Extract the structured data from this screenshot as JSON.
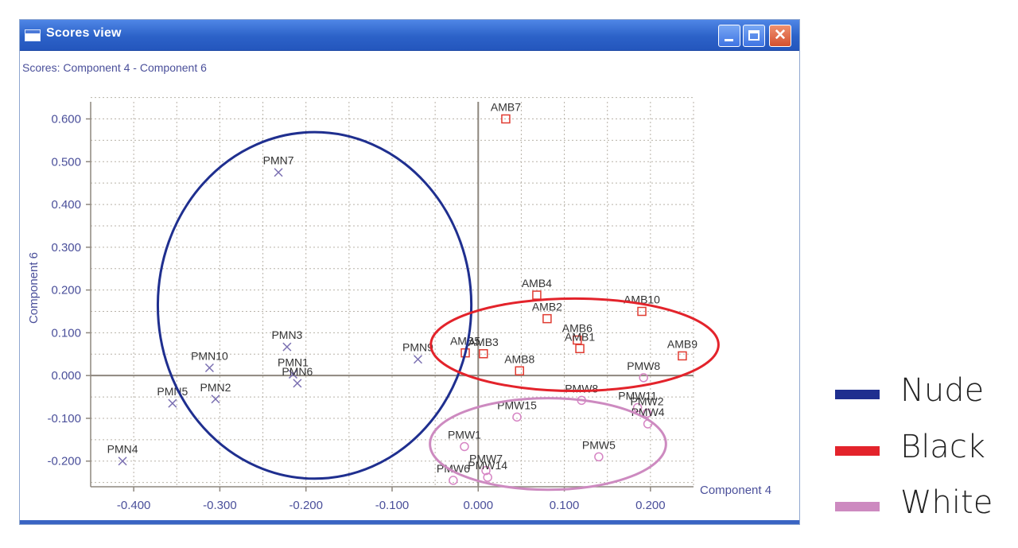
{
  "window": {
    "title": "Scores view",
    "subtitle": "Scores: Component 4 - Component 6",
    "controls": {
      "minimize": "minimize",
      "maximize": "maximize",
      "close": "close"
    }
  },
  "colors": {
    "nude": "#1f2f8f",
    "black": "#e3232b",
    "white": "#cd8ac0",
    "marker_pmn": "#7a6fb1",
    "marker_amb": "#e03b31",
    "marker_pmw": "#d685c4",
    "axis_text": "#4a4f9a",
    "grid": "#b8b2a8",
    "zero_axis": "#8e877e"
  },
  "legend": [
    {
      "label": "Nude",
      "color": "#1f2f8f"
    },
    {
      "label": "Black",
      "color": "#e3232b"
    },
    {
      "label": "White",
      "color": "#cd8ac0"
    }
  ],
  "chart_data": {
    "type": "scatter",
    "title": "Scores: Component 4 - Component 6",
    "xlabel": "Component 4",
    "ylabel": "Component 6",
    "xlim": [
      -0.45,
      0.25
    ],
    "ylim": [
      -0.26,
      0.64
    ],
    "xticks": [
      -0.4,
      -0.3,
      -0.2,
      -0.1,
      0.0,
      0.1,
      0.2
    ],
    "xtick_labels": [
      "-0.400",
      "-0.300",
      "-0.200",
      "-0.100",
      "0.000",
      "0.100",
      "0.200"
    ],
    "yticks": [
      0.6,
      0.5,
      0.4,
      0.3,
      0.2,
      0.1,
      0.0,
      -0.1,
      -0.2
    ],
    "ytick_labels": [
      "0.600",
      "0.500",
      "0.400",
      "0.300",
      "0.200",
      "0.100",
      "0.000",
      "-0.100",
      "-0.200"
    ],
    "grid": true,
    "series": [
      {
        "name": "Nude",
        "marker": "x",
        "points": [
          {
            "label": "PMN7",
            "x": -0.232,
            "y": 0.475
          },
          {
            "label": "PMN3",
            "x": -0.222,
            "y": 0.067
          },
          {
            "label": "PMN10",
            "x": -0.312,
            "y": 0.018
          },
          {
            "label": "PMN1",
            "x": -0.215,
            "y": 0.003
          },
          {
            "label": "PMN6",
            "x": -0.21,
            "y": -0.018
          },
          {
            "label": "PMN9",
            "x": -0.07,
            "y": 0.038
          },
          {
            "label": "PMN5",
            "x": -0.355,
            "y": -0.065
          },
          {
            "label": "PMN2",
            "x": -0.305,
            "y": -0.055
          },
          {
            "label": "PMN4",
            "x": -0.413,
            "y": -0.2
          }
        ]
      },
      {
        "name": "Black",
        "marker": "square",
        "points": [
          {
            "label": "AMB7",
            "x": 0.032,
            "y": 0.6
          },
          {
            "label": "AMB4",
            "x": 0.068,
            "y": 0.188
          },
          {
            "label": "AMB2",
            "x": 0.08,
            "y": 0.133
          },
          {
            "label": "AMB10",
            "x": 0.19,
            "y": 0.15
          },
          {
            "label": "AMB6",
            "x": 0.115,
            "y": 0.083
          },
          {
            "label": "AMB1",
            "x": 0.118,
            "y": 0.063
          },
          {
            "label": "AMB5",
            "x": -0.015,
            "y": 0.053
          },
          {
            "label": "AMB3",
            "x": 0.006,
            "y": 0.051
          },
          {
            "label": "AMB8",
            "x": 0.048,
            "y": 0.011
          },
          {
            "label": "AMB9",
            "x": 0.237,
            "y": 0.046
          }
        ]
      },
      {
        "name": "White",
        "marker": "circle",
        "points": [
          {
            "label": "PMW15",
            "x": 0.045,
            "y": -0.097
          },
          {
            "label": "PMW8",
            "x": 0.12,
            "y": -0.058
          },
          {
            "label": "PMW8",
            "x": 0.192,
            "y": -0.005
          },
          {
            "label": "PMW11",
            "x": 0.185,
            "y": -0.075
          },
          {
            "label": "PMW2",
            "x": 0.196,
            "y": -0.088
          },
          {
            "label": "PMW4",
            "x": 0.197,
            "y": -0.113
          },
          {
            "label": "PMW1",
            "x": -0.016,
            "y": -0.166
          },
          {
            "label": "PMW5",
            "x": 0.14,
            "y": -0.19
          },
          {
            "label": "PMW7",
            "x": 0.009,
            "y": -0.222
          },
          {
            "label": "PMW14",
            "x": 0.011,
            "y": -0.238
          },
          {
            "label": "PMW6",
            "x": -0.029,
            "y": -0.245
          }
        ]
      }
    ],
    "groups": [
      {
        "name": "Nude",
        "center": [
          -0.19,
          0.164
        ],
        "radius_x": 0.182,
        "radius_y": 0.405
      },
      {
        "name": "Black",
        "center": [
          0.112,
          0.072
        ],
        "radius_x": 0.167,
        "radius_y": 0.108
      },
      {
        "name": "White",
        "center": [
          0.081,
          -0.16
        ],
        "radius_x": 0.137,
        "radius_y": 0.107
      }
    ]
  }
}
